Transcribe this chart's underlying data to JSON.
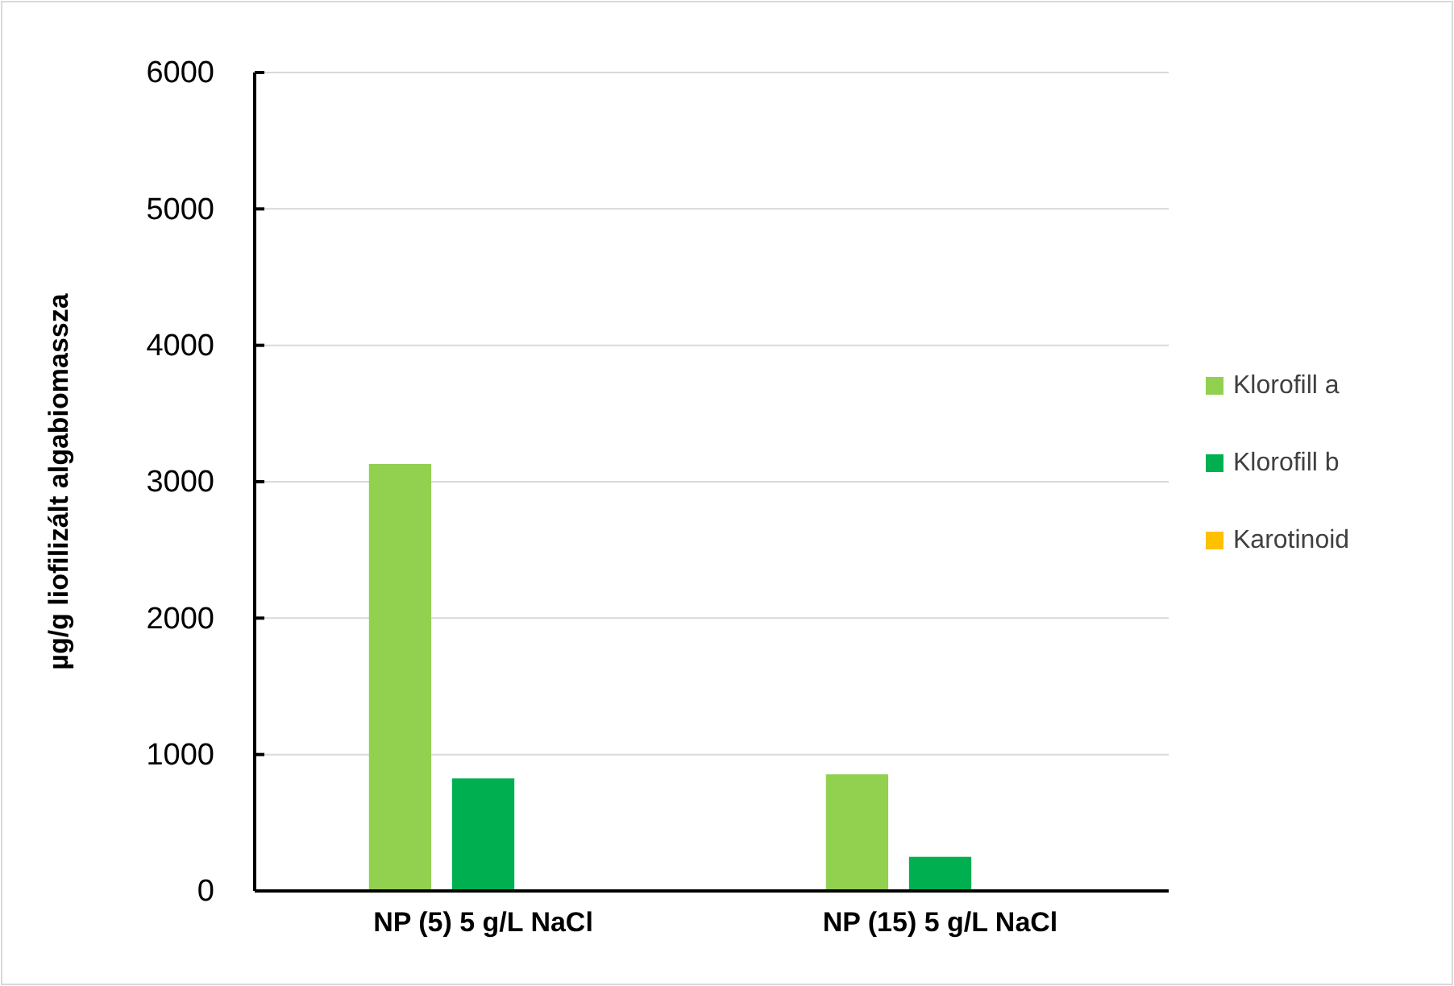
{
  "chart_data": {
    "type": "bar",
    "ylabel": "µg/g liofilizált algabiomassza",
    "categories": [
      "NP (5) 5 g/L NaCl",
      "NP (15) 5 g/L NaCl"
    ],
    "series": [
      {
        "name": "Klorofill a",
        "color": "#92d050",
        "values": [
          3130,
          855
        ]
      },
      {
        "name": "Klorofill b",
        "color": "#00b050",
        "values": [
          825,
          250
        ]
      },
      {
        "name": "Karotinoid",
        "color": "#ffc000",
        "values": [
          0,
          0
        ]
      }
    ],
    "ylim": [
      0,
      6000
    ],
    "yticks": [
      0,
      1000,
      2000,
      3000,
      4000,
      5000,
      6000
    ],
    "grid": "y",
    "legend": "right"
  }
}
